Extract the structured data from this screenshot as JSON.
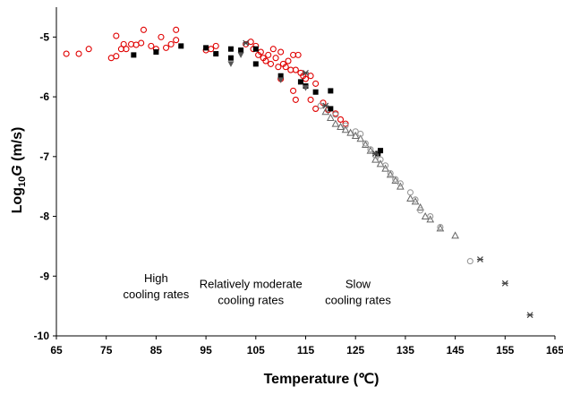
{
  "chart_data": {
    "type": "scatter",
    "xlabel": "Temperature (℃)",
    "ylabel_main": "Log",
    "ylabel_sub": "10",
    "ylabel_var": "G",
    "ylabel_unit": " (m/s)",
    "xlim": [
      65,
      165
    ],
    "ylim": [
      -10,
      -4.5
    ],
    "xticks": [
      65,
      75,
      85,
      95,
      105,
      115,
      125,
      135,
      145,
      155,
      165
    ],
    "yticks": [
      -5,
      -6,
      -7,
      -8,
      -9,
      -10
    ],
    "grid": false,
    "annotations": [
      {
        "lines": [
          "High",
          "cooling rates"
        ],
        "x": 85,
        "y": -9.1
      },
      {
        "lines": [
          "Relatively moderate",
          "cooling rates"
        ],
        "x": 104,
        "y": -9.2
      },
      {
        "lines": [
          "Slow",
          "cooling rates"
        ],
        "x": 125.5,
        "y": -9.2
      }
    ],
    "series": [
      {
        "color": "#e00000",
        "marker": "open-circle",
        "points": [
          [
            67,
            -5.28
          ],
          [
            69.5,
            -5.28
          ],
          [
            71.5,
            -5.2
          ],
          [
            76,
            -5.35
          ],
          [
            77,
            -5.32
          ],
          [
            77,
            -4.98
          ],
          [
            78,
            -5.2
          ],
          [
            78.5,
            -5.12
          ],
          [
            79,
            -5.2
          ],
          [
            80,
            -5.12
          ],
          [
            81,
            -5.13
          ],
          [
            82,
            -5.1
          ],
          [
            82.5,
            -4.88
          ],
          [
            84,
            -5.15
          ],
          [
            85,
            -5.2
          ],
          [
            86,
            -5.0
          ],
          [
            87,
            -5.18
          ],
          [
            88,
            -5.12
          ],
          [
            89,
            -5.05
          ],
          [
            89,
            -4.88
          ],
          [
            95,
            -5.22
          ],
          [
            96,
            -5.2
          ],
          [
            97,
            -5.15
          ],
          [
            103,
            -5.12
          ],
          [
            104,
            -5.08
          ],
          [
            104.5,
            -5.2
          ],
          [
            105,
            -5.15
          ],
          [
            105.5,
            -5.3
          ],
          [
            106,
            -5.25
          ],
          [
            106.5,
            -5.35
          ],
          [
            107,
            -5.4
          ],
          [
            107.5,
            -5.3
          ],
          [
            108,
            -5.45
          ],
          [
            108.5,
            -5.2
          ],
          [
            109,
            -5.35
          ],
          [
            109.5,
            -5.5
          ],
          [
            110,
            -5.25
          ],
          [
            110.5,
            -5.45
          ],
          [
            111,
            -5.5
          ],
          [
            111.5,
            -5.4
          ],
          [
            112,
            -5.55
          ],
          [
            112.5,
            -5.3
          ],
          [
            113,
            -5.55
          ],
          [
            113.5,
            -5.3
          ],
          [
            114,
            -5.6
          ],
          [
            114.5,
            -5.65
          ],
          [
            115,
            -5.7
          ],
          [
            116,
            -5.65
          ],
          [
            117,
            -5.78
          ],
          [
            112.5,
            -5.9
          ],
          [
            113,
            -6.05
          ],
          [
            116,
            -6.05
          ],
          [
            117,
            -6.2
          ],
          [
            118.5,
            -6.1
          ],
          [
            119.5,
            -6.22
          ],
          [
            121,
            -6.28
          ],
          [
            122,
            -6.38
          ],
          [
            123,
            -6.45
          ],
          [
            110,
            -5.7
          ]
        ]
      },
      {
        "color": "#000000",
        "marker": "filled-square",
        "points": [
          [
            80.5,
            -5.3
          ],
          [
            85,
            -5.25
          ],
          [
            90,
            -5.15
          ],
          [
            95,
            -5.18
          ],
          [
            97,
            -5.28
          ],
          [
            100,
            -5.2
          ],
          [
            100,
            -5.35
          ],
          [
            102,
            -5.22
          ],
          [
            105,
            -5.2
          ],
          [
            105,
            -5.45
          ],
          [
            110,
            -5.65
          ],
          [
            114,
            -5.75
          ],
          [
            115,
            -5.82
          ],
          [
            117,
            -5.92
          ],
          [
            120,
            -5.9
          ],
          [
            120,
            -6.2
          ],
          [
            130,
            -6.9
          ],
          [
            129.5,
            -6.95
          ]
        ]
      },
      {
        "color": "#555555",
        "marker": "filled-triangle",
        "points": [
          [
            100,
            -5.45
          ],
          [
            102,
            -5.3
          ],
          [
            110,
            -5.72
          ],
          [
            115,
            -5.85
          ]
        ]
      },
      {
        "color": "#666666",
        "marker": "open-triangle",
        "points": [
          [
            119,
            -6.25
          ],
          [
            120,
            -6.35
          ],
          [
            121,
            -6.45
          ],
          [
            122,
            -6.5
          ],
          [
            123,
            -6.55
          ],
          [
            124,
            -6.6
          ],
          [
            125,
            -6.65
          ],
          [
            126,
            -6.7
          ],
          [
            127,
            -6.8
          ],
          [
            128,
            -6.9
          ],
          [
            129,
            -7.05
          ],
          [
            130,
            -7.12
          ],
          [
            131,
            -7.2
          ],
          [
            132,
            -7.3
          ],
          [
            133,
            -7.4
          ],
          [
            134,
            -7.5
          ],
          [
            136,
            -7.7
          ],
          [
            137,
            -7.75
          ],
          [
            138,
            -7.85
          ],
          [
            139,
            -8.0
          ],
          [
            140,
            -8.05
          ],
          [
            142,
            -8.2
          ],
          [
            145,
            -8.32
          ]
        ]
      },
      {
        "color": "#999999",
        "marker": "open-circle",
        "points": [
          [
            118,
            -6.15
          ],
          [
            121,
            -6.3
          ],
          [
            123,
            -6.48
          ],
          [
            125,
            -6.58
          ],
          [
            126,
            -6.62
          ],
          [
            127,
            -6.78
          ],
          [
            128,
            -6.88
          ],
          [
            129,
            -6.98
          ],
          [
            130,
            -7.05
          ],
          [
            131,
            -7.15
          ],
          [
            132,
            -7.28
          ],
          [
            133,
            -7.38
          ],
          [
            134,
            -7.45
          ],
          [
            136,
            -7.6
          ],
          [
            137,
            -7.72
          ],
          [
            138,
            -7.9
          ],
          [
            140,
            -8.0
          ],
          [
            142,
            -8.18
          ],
          [
            148,
            -8.75
          ]
        ]
      },
      {
        "color": "#444444",
        "marker": "star",
        "points": [
          [
            103,
            -5.1
          ],
          [
            115,
            -5.6
          ],
          [
            119,
            -6.15
          ],
          [
            129,
            -6.95
          ],
          [
            150,
            -8.72
          ],
          [
            155,
            -9.12
          ],
          [
            160,
            -9.65
          ]
        ]
      }
    ]
  }
}
